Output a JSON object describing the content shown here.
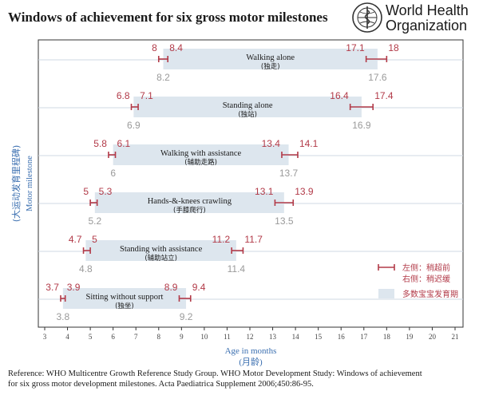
{
  "header": {
    "title": "Windows of achievement for six gross motor milestones",
    "org_line1": "World Health",
    "org_line2": "Organization"
  },
  "colors": {
    "window_fill": "#dde6ee",
    "marker": "#b23a48",
    "value_gray": "#9a9a9a",
    "axis": "#333333",
    "grid": "#cfd8e3",
    "axis_label": "#3b6fb0"
  },
  "chart_data": {
    "type": "range-bar",
    "x_axis": {
      "label": "Age in months",
      "label_cn": "(月龄)",
      "min": 3,
      "max": 21,
      "ticks": [
        3,
        4,
        5,
        6,
        7,
        8,
        9,
        10,
        11,
        12,
        13,
        14,
        15,
        16,
        17,
        18,
        19,
        20,
        21
      ]
    },
    "y_axis": {
      "label": "Motor milestone",
      "label_cn": "(大运动发育里程碑)"
    },
    "milestones": [
      {
        "name": "Walking alone",
        "name_cn": "(独走)",
        "window_start": 8.2,
        "window_end": 17.6,
        "left_low": 8,
        "left_high": 8.4,
        "right_low": 17.1,
        "right_high": 18
      },
      {
        "name": "Standing alone",
        "name_cn": "(独站)",
        "window_start": 6.9,
        "window_end": 16.9,
        "left_low": 6.8,
        "left_high": 7.1,
        "right_low": 16.4,
        "right_high": 17.4
      },
      {
        "name": "Walking with assistance",
        "name_cn": "(辅助走路)",
        "window_start": 6,
        "window_end": 13.7,
        "left_low": 5.8,
        "left_high": 6.1,
        "right_low": 13.4,
        "right_high": 14.1
      },
      {
        "name": "Hands-&-knees crawling",
        "name_cn": "(手膝爬行)",
        "window_start": 5.2,
        "window_end": 13.5,
        "left_low": 5,
        "left_high": 5.3,
        "right_low": 13.1,
        "right_high": 13.9
      },
      {
        "name": "Standing with assistance",
        "name_cn": "(辅助站立)",
        "window_start": 4.8,
        "window_end": 11.4,
        "left_low": 4.7,
        "left_high": 5,
        "right_low": 11.2,
        "right_high": 11.7
      },
      {
        "name": "Sitting without support",
        "name_cn": "(独坐)",
        "window_start": 3.8,
        "window_end": 9.2,
        "left_low": 3.7,
        "left_high": 3.9,
        "right_low": 8.9,
        "right_high": 9.4
      }
    ],
    "legend": {
      "ci_line1": "左侧：稍超前",
      "ci_line2": "右侧：稍迟缓",
      "window": "多数宝宝发育期",
      "placement": "right"
    }
  },
  "reference": {
    "line1": "Reference: WHO Multicentre Growth Reference Study Group. WHO Motor Development Study: Windows of achievement",
    "line2": "for six gross motor development milestones. Acta Paediatrica Supplement 2006;450:86-95."
  }
}
